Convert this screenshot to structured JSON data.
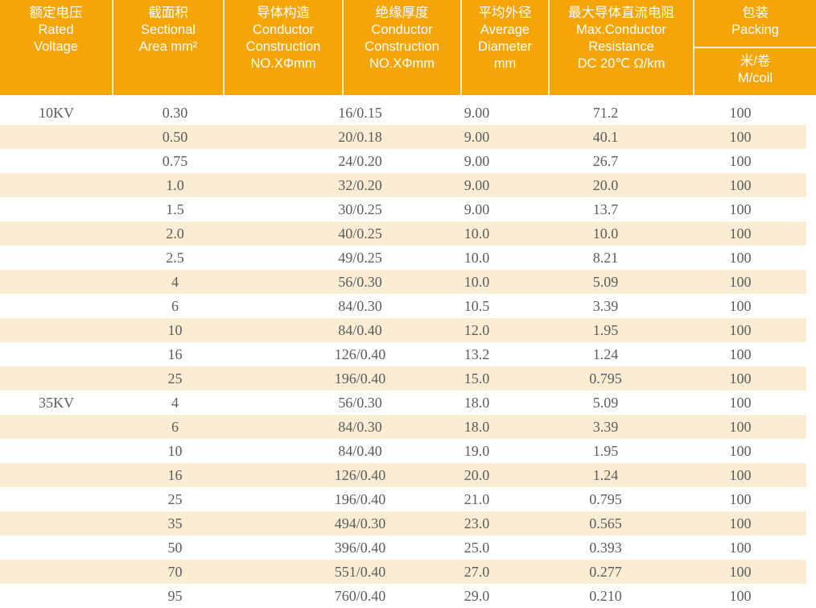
{
  "colors": {
    "header_bg": "#F5A506",
    "header_text": "#FFFFFF",
    "row_alt_bg": "#FAEDD4",
    "row_bg": "#FFFFFF",
    "body_text": "#5C5C5C"
  },
  "table": {
    "header": {
      "columns": [
        {
          "name": "rated-voltage",
          "lines": [
            "额定电压",
            "Rated",
            "Voltage"
          ]
        },
        {
          "name": "sectional-area",
          "lines": [
            "截面积",
            "Sectional",
            "Area mm²"
          ]
        },
        {
          "name": "conductor-construction",
          "lines": [
            "导体构造",
            "Conductor",
            "Construction",
            "NO.XΦmm"
          ]
        },
        {
          "name": "insulation-thickness",
          "lines": [
            "绝缘厚度",
            "Conductor",
            "Construction",
            "NO.XΦmm"
          ]
        },
        {
          "name": "average-diameter",
          "lines": [
            "平均外径",
            "Average",
            "Diameter",
            "mm"
          ]
        },
        {
          "name": "max-conductor-resistance",
          "lines": [
            "最大导体直流电阻",
            "Max.Conductor",
            "Resistance",
            "DC 20℃ Ω/km"
          ]
        },
        {
          "name": "packing",
          "lines": [
            "包装",
            "Packing"
          ],
          "sub_lines": [
            "米/卷",
            "M/coil"
          ]
        }
      ]
    },
    "rows": [
      {
        "voltage": "10KV",
        "area": "0.30",
        "construction": "16/0.15",
        "diameter": "9.00",
        "resistance": "71.2",
        "packing": "100"
      },
      {
        "voltage": "",
        "area": "0.50",
        "construction": "20/0.18",
        "diameter": "9.00",
        "resistance": "40.1",
        "packing": "100"
      },
      {
        "voltage": "",
        "area": "0.75",
        "construction": "24/0.20",
        "diameter": "9.00",
        "resistance": "26.7",
        "packing": "100"
      },
      {
        "voltage": "",
        "area": "1.0",
        "construction": "32/0.20",
        "diameter": "9.00",
        "resistance": "20.0",
        "packing": "100"
      },
      {
        "voltage": "",
        "area": "1.5",
        "construction": "30/0.25",
        "diameter": "9.00",
        "resistance": "13.7",
        "packing": "100"
      },
      {
        "voltage": "",
        "area": "2.0",
        "construction": "40/0.25",
        "diameter": "10.0",
        "resistance": "10.0",
        "packing": "100"
      },
      {
        "voltage": "",
        "area": "2.5",
        "construction": "49/0.25",
        "diameter": "10.0",
        "resistance": "8.21",
        "packing": "100"
      },
      {
        "voltage": "",
        "area": "4",
        "construction": "56/0.30",
        "diameter": "10.0",
        "resistance": "5.09",
        "packing": "100"
      },
      {
        "voltage": "",
        "area": "6",
        "construction": "84/0.30",
        "diameter": "10.5",
        "resistance": "3.39",
        "packing": "100"
      },
      {
        "voltage": "",
        "area": "10",
        "construction": "84/0.40",
        "diameter": "12.0",
        "resistance": "1.95",
        "packing": "100"
      },
      {
        "voltage": "",
        "area": "16",
        "construction": "126/0.40",
        "diameter": "13.2",
        "resistance": "1.24",
        "packing": "100"
      },
      {
        "voltage": "",
        "area": "25",
        "construction": "196/0.40",
        "diameter": "15.0",
        "resistance": "0.795",
        "packing": "100"
      },
      {
        "voltage": "35KV",
        "area": "4",
        "construction": "56/0.30",
        "diameter": "18.0",
        "resistance": "5.09",
        "packing": "100"
      },
      {
        "voltage": "",
        "area": "6",
        "construction": "84/0.30",
        "diameter": "18.0",
        "resistance": "3.39",
        "packing": "100"
      },
      {
        "voltage": "",
        "area": "10",
        "construction": "84/0.40",
        "diameter": "19.0",
        "resistance": "1.95",
        "packing": "100"
      },
      {
        "voltage": "",
        "area": "16",
        "construction": "126/0.40",
        "diameter": "20.0",
        "resistance": "1.24",
        "packing": "100"
      },
      {
        "voltage": "",
        "area": "25",
        "construction": "196/0.40",
        "diameter": "21.0",
        "resistance": "0.795",
        "packing": "100"
      },
      {
        "voltage": "",
        "area": "35",
        "construction": "494/0.30",
        "diameter": "23.0",
        "resistance": "0.565",
        "packing": "100"
      },
      {
        "voltage": "",
        "area": "50",
        "construction": "396/0.40",
        "diameter": "25.0",
        "resistance": "0.393",
        "packing": "100"
      },
      {
        "voltage": "",
        "area": "70",
        "construction": "551/0.40",
        "diameter": "27.0",
        "resistance": "0.277",
        "packing": "100"
      },
      {
        "voltage": "",
        "area": "95",
        "construction": "760/0.40",
        "diameter": "29.0",
        "resistance": "0.210",
        "packing": "100"
      }
    ]
  }
}
